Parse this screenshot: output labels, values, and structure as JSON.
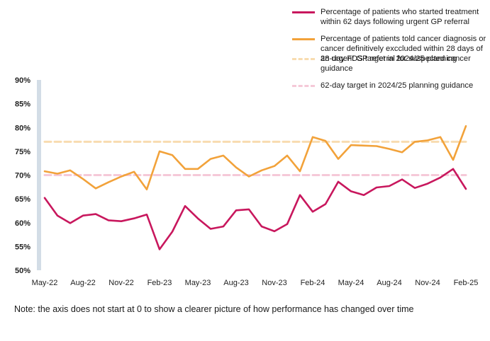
{
  "chart_data": {
    "type": "line",
    "title": "",
    "xlabel": "",
    "ylabel": "",
    "ylim": [
      50,
      90
    ],
    "yticks": [
      50,
      55,
      60,
      65,
      70,
      75,
      80,
      85,
      90
    ],
    "ytick_labels": [
      "50%",
      "55%",
      "60%",
      "65%",
      "70%",
      "75%",
      "80%",
      "85%",
      "90%"
    ],
    "x": [
      "May-22",
      "Jun-22",
      "Jul-22",
      "Aug-22",
      "Sep-22",
      "Oct-22",
      "Nov-22",
      "Dec-22",
      "Jan-23",
      "Feb-23",
      "Mar-23",
      "Apr-23",
      "May-23",
      "Jun-23",
      "Jul-23",
      "Aug-23",
      "Sep-23",
      "Oct-23",
      "Nov-23",
      "Dec-23",
      "Jan-24",
      "Feb-24",
      "Mar-24",
      "Apr-24",
      "May-24",
      "Jun-24",
      "Jul-24",
      "Aug-24",
      "Sep-24",
      "Oct-24",
      "Nov-24",
      "Dec-24",
      "Jan-25",
      "Feb-25"
    ],
    "xtick_labels": [
      "May-22",
      "Aug-22",
      "Nov-22",
      "Feb-23",
      "May-23",
      "Aug-23",
      "Nov-23",
      "Feb-24",
      "May-24",
      "Aug-24",
      "Nov-24",
      "Feb-25"
    ],
    "grid": false,
    "legend_position": "top-right",
    "series": [
      {
        "name": "Percentage of patients who started treatment within 62 days following urgent GP referral",
        "color": "#c8175d",
        "style": "solid",
        "values": [
          65.2,
          61.5,
          59.9,
          61.5,
          61.8,
          60.5,
          60.3,
          60.9,
          61.7,
          54.4,
          58.1,
          63.5,
          60.9,
          58.7,
          59.2,
          62.6,
          62.8,
          59.2,
          58.2,
          59.7,
          65.8,
          62.3,
          63.9,
          68.6,
          66.6,
          65.8,
          67.4,
          67.7,
          69.1,
          67.3,
          68.2,
          69.5,
          71.3,
          67.1
        ]
      },
      {
        "name": "Percentage of patients told cancer diagnosis or cancer definitively exccluded  within 28 days of an urgent GP referral for suspected cancer",
        "color": "#f2a23a",
        "style": "solid",
        "values": [
          70.8,
          70.3,
          71.0,
          69.2,
          67.2,
          68.5,
          69.7,
          70.7,
          67.0,
          75.0,
          74.2,
          71.3,
          71.3,
          73.4,
          74.1,
          71.6,
          69.7,
          71.0,
          71.9,
          74.1,
          70.8,
          78.0,
          77.2,
          73.4,
          76.3,
          76.2,
          76.1,
          75.5,
          74.8,
          77.0,
          77.3,
          78.0,
          73.2,
          80.3
        ]
      },
      {
        "name": "28-day FDS target in 2024/25 planning guidance",
        "color": "#f8dcb0",
        "style": "dashed",
        "values": [
          77,
          77,
          77,
          77,
          77,
          77,
          77,
          77,
          77,
          77,
          77,
          77,
          77,
          77,
          77,
          77,
          77,
          77,
          77,
          77,
          77,
          77,
          77,
          77,
          77,
          77,
          77,
          77,
          77,
          77,
          77,
          77,
          77,
          77
        ]
      },
      {
        "name": "62-day target in 2024/25 planning guidance",
        "color": "#f5c9d8",
        "style": "dashed",
        "values": [
          70,
          70,
          70,
          70,
          70,
          70,
          70,
          70,
          70,
          70,
          70,
          70,
          70,
          70,
          70,
          70,
          70,
          70,
          70,
          70,
          70,
          70,
          70,
          70,
          70,
          70,
          70,
          70,
          70,
          70,
          70,
          70,
          70,
          70
        ]
      }
    ]
  },
  "legend": [
    {
      "label": "Percentage of patients who started treatment within 62 days following urgent GP referral"
    },
    {
      "label": "Percentage of patients told cancer diagnosis or cancer definitively exccluded  within 28 days of an urgent GP referral for suspected cancer"
    },
    {
      "label": "28-day FDS target in 2024/25 planning guidance"
    },
    {
      "label": "62-day target in 2024/25 planning guidance"
    }
  ],
  "note": "Note: the axis does not start at 0 to show a clearer picture of how performance has changed over time",
  "colors": {
    "axis": "#d3dde6"
  }
}
